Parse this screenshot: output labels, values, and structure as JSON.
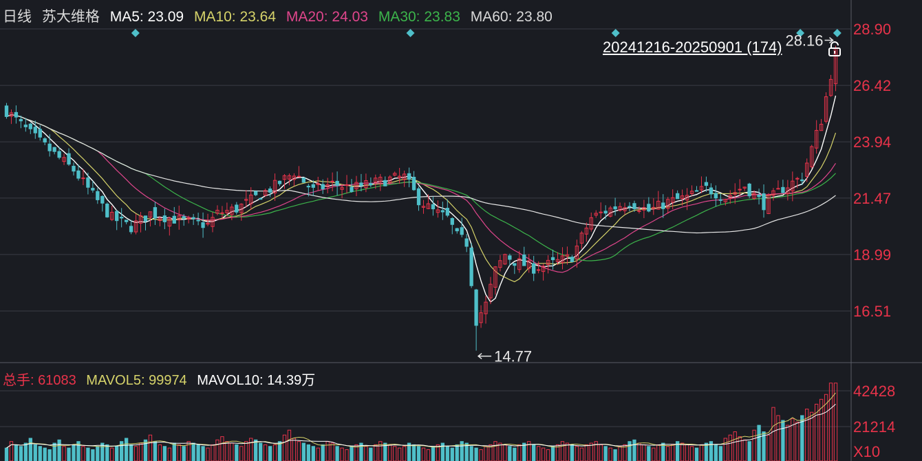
{
  "header": {
    "period": "日线",
    "stock": "苏大维格",
    "ma": [
      {
        "label": "MA5: 23.09",
        "color": "#ffffff"
      },
      {
        "label": "MA10: 23.64",
        "color": "#d6d36a"
      },
      {
        "label": "MA20: 24.03",
        "color": "#e0468c"
      },
      {
        "label": "MA30: 23.83",
        "color": "#3cb44b"
      },
      {
        "label": "MA60: 23.80",
        "color": "#d9d9d9"
      }
    ]
  },
  "range": {
    "label": "20241216-20250901 (174)",
    "icon": "unlock-icon"
  },
  "volume_header": {
    "total": "总手: 61083",
    "mavol5": "MAVOL5: 99974",
    "mavol10_value": "MAVOL10: 14.39",
    "mavol10_unit": "万"
  },
  "colors": {
    "up": "#e8334a",
    "down": "#4fbfc9",
    "background": "#1a1c22",
    "grid": "#3a3d45",
    "axis_text": "#e8334a"
  },
  "chart_data": [
    {
      "type": "candlestick",
      "title": "",
      "y_ticks": [
        "28.90",
        "26.42",
        "23.94",
        "21.47",
        "18.99",
        "16.51"
      ],
      "ylim": [
        14.2,
        29.5
      ],
      "x_count": 174,
      "annotations": [
        {
          "text": "28.16",
          "kind": "max-price",
          "value": 28.16
        },
        {
          "text": "14.77",
          "kind": "min-price",
          "value": 14.77
        }
      ],
      "ma_values": {
        "MA5": 23.09,
        "MA10": 23.64,
        "MA20": 24.03,
        "MA30": 23.83,
        "MA60": 23.8
      },
      "close_anchors": [
        [
          0,
          25.3
        ],
        [
          5,
          24.3
        ],
        [
          10,
          23.4
        ],
        [
          14,
          22.7
        ],
        [
          18,
          21.6
        ],
        [
          22,
          20.6
        ],
        [
          26,
          20.2
        ],
        [
          30,
          20.8
        ],
        [
          34,
          20.6
        ],
        [
          38,
          20.4
        ],
        [
          42,
          20.3
        ],
        [
          44,
          20.8
        ],
        [
          48,
          21.0
        ],
        [
          52,
          21.5
        ],
        [
          56,
          22.0
        ],
        [
          60,
          22.6
        ],
        [
          64,
          21.8
        ],
        [
          68,
          22.1
        ],
        [
          72,
          21.9
        ],
        [
          76,
          22.1
        ],
        [
          80,
          22.3
        ],
        [
          83,
          22.4
        ],
        [
          86,
          21.4
        ],
        [
          89,
          20.9
        ],
        [
          92,
          20.6
        ],
        [
          94,
          19.8
        ],
        [
          96,
          19.5
        ],
        [
          98,
          16.1
        ],
        [
          100,
          16.8
        ],
        [
          102,
          18.3
        ],
        [
          104,
          19.0
        ],
        [
          106,
          18.7
        ],
        [
          110,
          18.4
        ],
        [
          114,
          18.6
        ],
        [
          118,
          18.9
        ],
        [
          122,
          20.6
        ],
        [
          126,
          21.0
        ],
        [
          130,
          21.3
        ],
        [
          134,
          20.9
        ],
        [
          138,
          21.3
        ],
        [
          142,
          21.5
        ],
        [
          146,
          21.9
        ],
        [
          150,
          21.5
        ],
        [
          154,
          22.0
        ],
        [
          158,
          21.2
        ],
        [
          162,
          21.9
        ],
        [
          166,
          22.4
        ],
        [
          170,
          24.9
        ],
        [
          173,
          27.9
        ]
      ]
    },
    {
      "type": "bar",
      "title": "",
      "y_ticks": [
        "42428",
        "21214"
      ],
      "unit_label": "X10",
      "values": [
        8,
        12,
        10,
        9,
        11,
        14,
        10,
        9,
        8,
        7,
        11,
        13,
        9,
        8,
        10,
        12,
        9,
        8,
        7,
        9,
        11,
        10,
        8,
        9,
        12,
        14,
        10,
        9,
        11,
        13,
        16,
        12,
        10,
        9,
        8,
        11,
        10,
        9,
        12,
        11,
        10,
        9,
        8,
        10,
        13,
        15,
        12,
        11,
        10,
        9,
        12,
        14,
        13,
        11,
        10,
        9,
        10,
        12,
        16,
        19,
        14,
        12,
        11,
        10,
        9,
        8,
        10,
        12,
        11,
        9,
        8,
        7,
        9,
        10,
        11,
        9,
        8,
        10,
        12,
        11,
        10,
        9,
        8,
        9,
        11,
        10,
        9,
        8,
        7,
        9,
        10,
        11,
        9,
        8,
        10,
        12,
        11,
        9,
        8,
        7,
        9,
        10,
        12,
        11,
        10,
        9,
        8,
        10,
        11,
        12,
        10,
        9,
        8,
        7,
        9,
        10,
        12,
        11,
        10,
        9,
        8,
        10,
        11,
        12,
        10,
        9,
        8,
        7,
        9,
        10,
        12,
        13,
        11,
        10,
        9,
        8,
        10,
        11,
        9,
        10,
        12,
        11,
        10,
        9,
        8,
        10,
        11,
        12,
        10,
        9,
        14,
        16,
        18,
        15,
        13,
        12,
        19,
        22,
        18,
        16,
        33,
        28,
        25,
        22,
        26,
        24,
        28,
        32,
        30,
        35,
        38,
        41,
        48,
        48
      ]
    }
  ]
}
